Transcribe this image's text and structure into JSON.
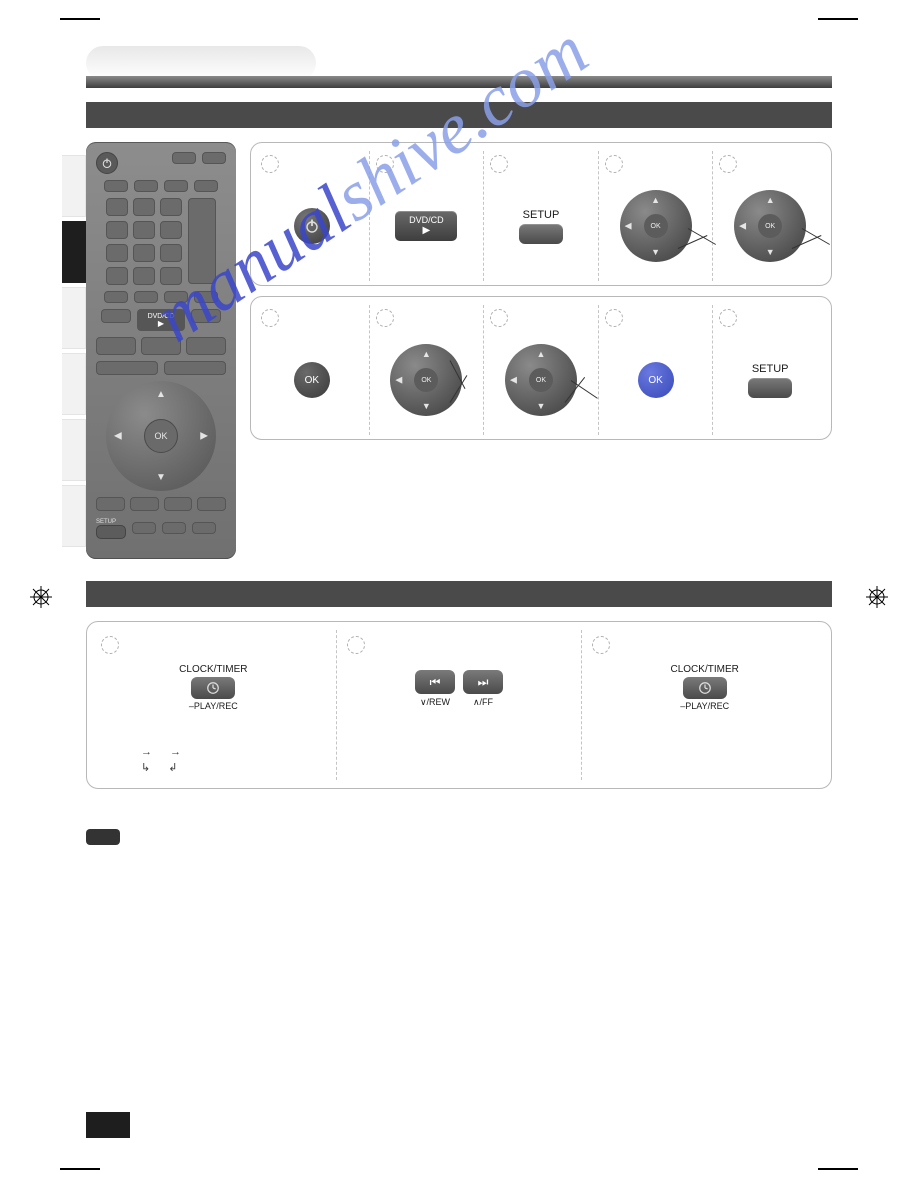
{
  "colors": {
    "page_bg": "#ffffff",
    "bar_dark": "#4a4a4a",
    "panel_border": "#b8b8b8",
    "dash": "#c4c4c4",
    "remote_top": "#8d8d8d",
    "remote_bot": "#707070",
    "btn_dark_top": "#7a7a7a",
    "btn_dark_bot": "#4a4a4a",
    "ok_blue": "#4a5fd4",
    "watermark_dark": "#3a46c9",
    "watermark_light": "#8aa0e8",
    "tab_dark": "#1e1e1e"
  },
  "remote": {
    "dvd_label": "DVD/CD",
    "ok_label": "OK",
    "setup_label": "SETUP"
  },
  "steps_row1": [
    {
      "kind": "power"
    },
    {
      "kind": "dvdcd",
      "label": "DVD/CD"
    },
    {
      "kind": "setup",
      "label": "SETUP"
    },
    {
      "kind": "ring",
      "ok_color": "grey",
      "ok_label": "OK",
      "pointers": [
        [
          68,
          38,
          30
        ],
        [
          58,
          58,
          -24
        ]
      ]
    },
    {
      "kind": "ring",
      "ok_color": "grey",
      "ok_label": "OK",
      "pointers": [
        [
          68,
          38,
          30
        ],
        [
          58,
          58,
          -24
        ]
      ]
    }
  ],
  "steps_row2": [
    {
      "kind": "okcircle",
      "ok_color": "grey",
      "ok_label": "OK"
    },
    {
      "kind": "ring",
      "ok_color": "grey",
      "ok_label": "OK",
      "pointers": [
        [
          60,
          16,
          62
        ],
        [
          60,
          58,
          -58
        ]
      ]
    },
    {
      "kind": "ring",
      "ok_color": "grey",
      "ok_label": "OK",
      "pointers": [
        [
          66,
          36,
          34
        ],
        [
          60,
          58,
          -52
        ]
      ]
    },
    {
      "kind": "okcircle",
      "ok_color": "blue",
      "ok_label": "OK"
    },
    {
      "kind": "setup",
      "label": "SETUP"
    }
  ],
  "clock": {
    "top_label": "CLOCK/TIMER",
    "bottom_label": "–PLAY/REC",
    "skip_prev": "∨/REW",
    "skip_next": "∧/FF"
  },
  "watermark": {
    "dark": "manual",
    "light": "shive.com"
  }
}
